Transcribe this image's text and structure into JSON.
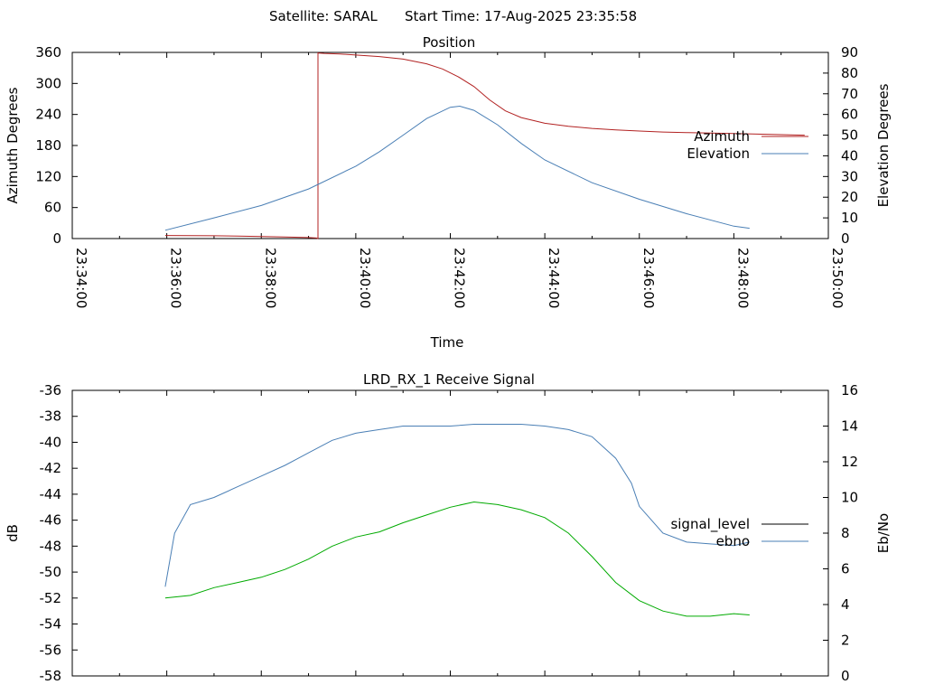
{
  "header": {
    "satellite": "Satellite: SARAL",
    "start_time": "Start Time: 17-Aug-2025 23:35:58"
  },
  "chart_data": [
    {
      "type": "line",
      "title": "Position",
      "xlabel": "Time",
      "ylabel_left": "Azimuth Degrees",
      "ylabel_right": "Elevation Degrees",
      "xlim": [
        "23:34:00",
        "23:50:00"
      ],
      "x_ticks": [
        "23:34:00",
        "23:36:00",
        "23:38:00",
        "23:40:00",
        "23:42:00",
        "23:44:00",
        "23:46:00",
        "23:48:00",
        "23:50:00"
      ],
      "ylim_left": [
        0,
        360
      ],
      "y_ticks_left": [
        "0",
        "60",
        "120",
        "180",
        "240",
        "300",
        "360"
      ],
      "ylim_right": [
        0,
        90
      ],
      "y_ticks_right": [
        "0",
        "10",
        "20",
        "30",
        "40",
        "50",
        "60",
        "70",
        "80",
        "90"
      ],
      "legend_position": "right",
      "grid": false,
      "series": [
        {
          "name": "Azimuth",
          "axis": "left",
          "color": "#b22222",
          "x": [
            "23:35:58",
            "23:36:30",
            "23:37:00",
            "23:37:30",
            "23:38:00",
            "23:38:30",
            "23:39:00",
            "23:39:10",
            "23:39:12",
            "23:39:20",
            "23:39:40",
            "23:40:00",
            "23:40:30",
            "23:41:00",
            "23:41:30",
            "23:41:50",
            "23:42:10",
            "23:42:30",
            "23:42:50",
            "23:43:10",
            "23:43:30",
            "23:44:00",
            "23:44:30",
            "23:45:00",
            "23:45:30",
            "23:46:00",
            "23:46:30",
            "23:47:00",
            "23:47:30",
            "23:48:00",
            "23:48:30",
            "23:49:00",
            "23:49:30"
          ],
          "y": [
            6,
            5.8,
            5.4,
            4.8,
            4,
            3.1,
            2,
            1,
            359,
            358,
            357,
            355,
            352,
            347,
            338,
            328,
            313,
            294,
            268,
            247,
            234,
            223,
            217,
            213,
            210,
            208,
            206,
            205,
            204,
            203,
            202,
            201,
            200
          ]
        },
        {
          "name": "Elevation",
          "axis": "right",
          "color": "#4a7fb5",
          "x": [
            "23:35:58",
            "23:37:00",
            "23:38:00",
            "23:39:00",
            "23:40:00",
            "23:40:30",
            "23:41:00",
            "23:41:30",
            "23:42:00",
            "23:42:12",
            "23:42:30",
            "23:43:00",
            "23:43:30",
            "23:44:00",
            "23:45:00",
            "23:46:00",
            "23:47:00",
            "23:48:00",
            "23:48:20"
          ],
          "y": [
            4,
            10,
            16,
            24,
            35,
            42,
            50,
            58,
            63.5,
            64,
            62,
            55,
            46,
            38,
            27,
            19,
            12,
            6,
            5
          ]
        }
      ]
    },
    {
      "type": "line",
      "title": "LRD_RX_1 Receive Signal",
      "xlabel": "",
      "ylabel_left": "dB",
      "ylabel_right": "Eb/No",
      "xlim": [
        "23:34:00",
        "23:50:00"
      ],
      "ylim_left": [
        -58,
        -36
      ],
      "y_ticks_left": [
        "-58",
        "-56",
        "-54",
        "-52",
        "-50",
        "-48",
        "-46",
        "-44",
        "-42",
        "-40",
        "-38",
        "-36"
      ],
      "ylim_right": [
        0,
        16
      ],
      "y_ticks_right": [
        "0",
        "2",
        "4",
        "6",
        "8",
        "10",
        "12",
        "14",
        "16"
      ],
      "legend_position": "right",
      "grid": false,
      "series": [
        {
          "name": "signal_level",
          "axis": "left",
          "color": "#000000",
          "x": [],
          "y": []
        },
        {
          "name": "ebno",
          "axis": "right",
          "color": "#4a7fb5",
          "x": [
            "23:35:58",
            "23:36:10",
            "23:36:30",
            "23:37:00",
            "23:37:30",
            "23:38:00",
            "23:38:30",
            "23:39:00",
            "23:39:30",
            "23:40:00",
            "23:40:30",
            "23:41:00",
            "23:41:30",
            "23:42:00",
            "23:42:30",
            "23:43:00",
            "23:43:30",
            "23:44:00",
            "23:44:30",
            "23:45:00",
            "23:45:30",
            "23:45:50",
            "23:46:00",
            "23:46:30",
            "23:47:00",
            "23:47:30",
            "23:48:00",
            "23:48:20"
          ],
          "y": [
            5,
            8,
            9.6,
            10,
            10.6,
            11.2,
            11.8,
            12.5,
            13.2,
            13.6,
            13.8,
            14,
            14,
            14,
            14.1,
            14.1,
            14.1,
            14,
            13.8,
            13.4,
            12.2,
            10.8,
            9.5,
            8,
            7.5,
            7.4,
            7.3,
            7.5
          ]
        },
        {
          "name": "",
          "axis": "left",
          "color": "#00aa00",
          "x": [
            "23:35:58",
            "23:36:30",
            "23:37:00",
            "23:37:30",
            "23:38:00",
            "23:38:30",
            "23:39:00",
            "23:39:30",
            "23:40:00",
            "23:40:30",
            "23:41:00",
            "23:41:30",
            "23:42:00",
            "23:42:30",
            "23:43:00",
            "23:43:30",
            "23:44:00",
            "23:44:30",
            "23:45:00",
            "23:45:30",
            "23:46:00",
            "23:46:30",
            "23:47:00",
            "23:47:30",
            "23:48:00",
            "23:48:20"
          ],
          "y": [
            -52,
            -51.8,
            -51.2,
            -50.8,
            -50.4,
            -49.8,
            -49,
            -48,
            -47.3,
            -46.9,
            -46.2,
            -45.6,
            -45,
            -44.6,
            -44.8,
            -45.2,
            -45.8,
            -47,
            -48.8,
            -50.8,
            -52.2,
            -53,
            -53.4,
            -53.4,
            -53.2,
            -53.3
          ]
        }
      ]
    }
  ]
}
